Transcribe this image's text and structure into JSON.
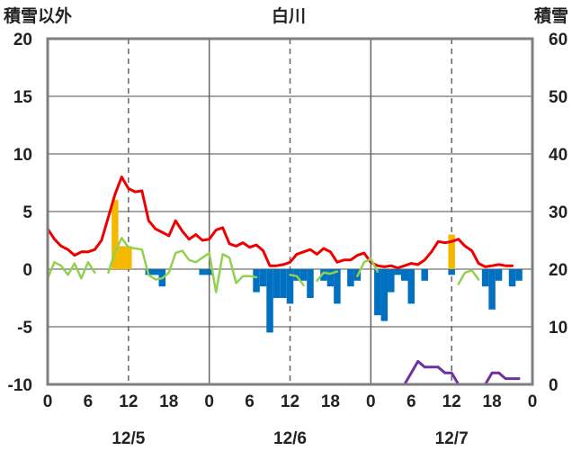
{
  "chart_data": {
    "type": "bar",
    "title": "白川",
    "left_axis_title": "積雪以外",
    "right_axis_title": "積雪",
    "y_left": {
      "min": -10,
      "max": 20,
      "ticks": [
        20,
        15,
        10,
        5,
        0,
        -5,
        -10
      ]
    },
    "y_right": {
      "min": 0,
      "max": 60,
      "ticks": [
        60,
        50,
        40,
        30,
        20,
        10,
        0
      ]
    },
    "x_range_hours": [
      0,
      72
    ],
    "x_tick_labels": [
      {
        "h": 0,
        "label": "0"
      },
      {
        "h": 6,
        "label": "6"
      },
      {
        "h": 12,
        "label": "12"
      },
      {
        "h": 18,
        "label": "18"
      },
      {
        "h": 24,
        "label": "0"
      },
      {
        "h": 30,
        "label": "6"
      },
      {
        "h": 36,
        "label": "12"
      },
      {
        "h": 42,
        "label": "18"
      },
      {
        "h": 48,
        "label": "0"
      },
      {
        "h": 54,
        "label": "6"
      },
      {
        "h": 60,
        "label": "12"
      },
      {
        "h": 66,
        "label": "18"
      },
      {
        "h": 72,
        "label": "0"
      }
    ],
    "date_labels": [
      {
        "h": 12,
        "label": "12/5"
      },
      {
        "h": 36,
        "label": "12/6"
      },
      {
        "h": 60,
        "label": "12/7"
      }
    ],
    "day_boundaries": [
      24,
      48
    ],
    "grid_dashed_hours": [
      12,
      36,
      60
    ],
    "grid": true,
    "bars": [
      {
        "h": 10,
        "v": 6,
        "color": "#f5b800"
      },
      {
        "h": 11,
        "v": 2,
        "color": "#f5b800"
      },
      {
        "h": 12,
        "v": 2,
        "color": "#f5b800"
      },
      {
        "h": 15,
        "v": -0.5,
        "color": "#0070c0"
      },
      {
        "h": 16,
        "v": -0.5,
        "color": "#0070c0"
      },
      {
        "h": 17,
        "v": -1.5,
        "color": "#0070c0"
      },
      {
        "h": 23,
        "v": -0.5,
        "color": "#0070c0"
      },
      {
        "h": 24,
        "v": -0.5,
        "color": "#0070c0"
      },
      {
        "h": 31,
        "v": -2,
        "color": "#0070c0"
      },
      {
        "h": 32,
        "v": -1.5,
        "color": "#0070c0"
      },
      {
        "h": 33,
        "v": -5.5,
        "color": "#0070c0"
      },
      {
        "h": 34,
        "v": -2.5,
        "color": "#0070c0"
      },
      {
        "h": 35,
        "v": -2.5,
        "color": "#0070c0"
      },
      {
        "h": 36,
        "v": -3,
        "color": "#0070c0"
      },
      {
        "h": 37,
        "v": -1,
        "color": "#0070c0"
      },
      {
        "h": 38,
        "v": -1,
        "color": "#0070c0"
      },
      {
        "h": 39,
        "v": -2.5,
        "color": "#0070c0"
      },
      {
        "h": 41,
        "v": -1,
        "color": "#0070c0"
      },
      {
        "h": 42,
        "v": -1.5,
        "color": "#0070c0"
      },
      {
        "h": 43,
        "v": -3,
        "color": "#0070c0"
      },
      {
        "h": 45,
        "v": -1.5,
        "color": "#0070c0"
      },
      {
        "h": 46,
        "v": -1,
        "color": "#0070c0"
      },
      {
        "h": 49,
        "v": -4,
        "color": "#0070c0"
      },
      {
        "h": 50,
        "v": -4.5,
        "color": "#0070c0"
      },
      {
        "h": 51,
        "v": -2,
        "color": "#0070c0"
      },
      {
        "h": 52,
        "v": -0.5,
        "color": "#0070c0"
      },
      {
        "h": 53,
        "v": -1,
        "color": "#0070c0"
      },
      {
        "h": 54,
        "v": -3,
        "color": "#0070c0"
      },
      {
        "h": 56,
        "v": -1,
        "color": "#0070c0"
      },
      {
        "h": 60,
        "v": 3,
        "color": "#f5b800"
      },
      {
        "h": 60,
        "v": -0.5,
        "color": "#0070c0"
      },
      {
        "h": 65,
        "v": -1.5,
        "color": "#0070c0"
      },
      {
        "h": 66,
        "v": -3.5,
        "color": "#0070c0"
      },
      {
        "h": 67,
        "v": -1,
        "color": "#0070c0"
      },
      {
        "h": 69,
        "v": -1.5,
        "color": "#0070c0"
      },
      {
        "h": 70,
        "v": -1,
        "color": "#0070c0"
      }
    ],
    "series": [
      {
        "color": "#ee0000",
        "axis": "left",
        "width": 3,
        "points": [
          [
            0,
            3.5
          ],
          [
            1,
            2.6
          ],
          [
            2,
            2
          ],
          [
            3,
            1.7
          ],
          [
            4,
            1.2
          ],
          [
            5,
            1.5
          ],
          [
            6,
            1.5
          ],
          [
            7,
            1.7
          ],
          [
            8,
            2.5
          ],
          [
            9,
            4.5
          ],
          [
            10,
            6.5
          ],
          [
            11,
            8
          ],
          [
            12,
            7
          ],
          [
            13,
            6.7
          ],
          [
            14,
            6.8
          ],
          [
            15,
            4.2
          ],
          [
            16,
            3.5
          ],
          [
            17,
            3.2
          ],
          [
            18,
            2.9
          ],
          [
            19,
            4.2
          ],
          [
            20,
            3.3
          ],
          [
            21,
            2.6
          ],
          [
            22,
            3
          ],
          [
            23,
            2.5
          ],
          [
            24,
            2.6
          ],
          [
            25,
            3.4
          ],
          [
            26,
            3.6
          ],
          [
            27,
            2.2
          ],
          [
            28,
            2
          ],
          [
            29,
            2.3
          ],
          [
            30,
            1.9
          ],
          [
            31,
            2.1
          ],
          [
            32,
            1.6
          ],
          [
            33,
            0.3
          ],
          [
            34,
            0.3
          ],
          [
            35,
            0.4
          ],
          [
            36,
            0.6
          ],
          [
            37,
            1.3
          ],
          [
            38,
            1.5
          ],
          [
            39,
            1.7
          ],
          [
            40,
            1.3
          ],
          [
            41,
            1.8
          ],
          [
            42,
            1.5
          ],
          [
            43,
            0.6
          ],
          [
            44,
            0.8
          ],
          [
            45,
            0.8
          ],
          [
            46,
            1.2
          ],
          [
            47,
            1.4
          ],
          [
            48,
            0.6
          ],
          [
            49,
            0.3
          ],
          [
            50,
            0.2
          ],
          [
            51,
            0.3
          ],
          [
            52,
            0.1
          ],
          [
            53,
            0.3
          ],
          [
            54,
            0.5
          ],
          [
            55,
            0.4
          ],
          [
            56,
            0.8
          ],
          [
            57,
            1.5
          ],
          [
            58,
            2.4
          ],
          [
            59,
            2.3
          ],
          [
            60,
            2.4
          ],
          [
            61,
            2.6
          ],
          [
            62,
            2
          ],
          [
            63,
            1.6
          ],
          [
            64,
            0.5
          ],
          [
            65,
            0.2
          ],
          [
            66,
            0.3
          ],
          [
            67,
            0.4
          ],
          [
            68,
            0.3
          ],
          [
            69,
            0.3
          ]
        ]
      },
      {
        "color": "#92d050",
        "axis": "left",
        "width": 2.5,
        "segments": [
          [
            [
              0,
              -0.8
            ],
            [
              1,
              0.6
            ],
            [
              2,
              0.3
            ],
            [
              3,
              -0.5
            ],
            [
              4,
              0.5
            ],
            [
              5,
              -0.8
            ],
            [
              6,
              0.6
            ],
            [
              7,
              -0.3
            ]
          ],
          [
            [
              9,
              -0.3
            ],
            [
              10,
              1.5
            ],
            [
              11,
              2.7
            ],
            [
              12,
              1.9
            ],
            [
              13,
              1.8
            ],
            [
              14,
              1.7
            ],
            [
              15,
              -0.5
            ],
            [
              16,
              -0.9
            ],
            [
              17,
              -0.8
            ],
            [
              18,
              -0.3
            ],
            [
              19,
              1.4
            ],
            [
              20,
              1.6
            ],
            [
              21,
              0.8
            ],
            [
              22,
              0.6
            ],
            [
              23,
              1.0
            ],
            [
              24,
              1.4
            ],
            [
              25,
              -2.0
            ],
            [
              26,
              1.3
            ],
            [
              27,
              1.0
            ],
            [
              28,
              -1.2
            ],
            [
              29,
              -0.6
            ],
            [
              30,
              -0.6
            ],
            [
              31,
              -0.7
            ]
          ],
          [
            [
              36,
              -0.5
            ],
            [
              37,
              -0.6
            ],
            [
              38,
              -1.4
            ]
          ],
          [
            [
              40,
              -1.0
            ],
            [
              41,
              -0.3
            ],
            [
              42,
              -0.4
            ],
            [
              43,
              -0.2
            ]
          ],
          [
            [
              46,
              -0.6
            ],
            [
              47,
              0.6
            ],
            [
              48,
              0.9
            ],
            [
              49,
              -0.2
            ]
          ],
          [
            [
              61,
              -1.3
            ],
            [
              62,
              -0.3
            ],
            [
              63,
              -0.1
            ],
            [
              64,
              -0.9
            ]
          ]
        ]
      },
      {
        "color": "#7030a0",
        "axis": "right",
        "width": 3,
        "points": [
          [
            0,
            0
          ],
          [
            53,
            0
          ],
          [
            54,
            2
          ],
          [
            55,
            4
          ],
          [
            56,
            3
          ],
          [
            57,
            3
          ],
          [
            58,
            3
          ],
          [
            59,
            2
          ],
          [
            60,
            2
          ],
          [
            61,
            0
          ],
          [
            62,
            0
          ],
          [
            63,
            0
          ],
          [
            64,
            0
          ],
          [
            65,
            0
          ],
          [
            66,
            2
          ],
          [
            67,
            2
          ],
          [
            68,
            1
          ],
          [
            69,
            1
          ],
          [
            70,
            1
          ]
        ]
      }
    ]
  }
}
